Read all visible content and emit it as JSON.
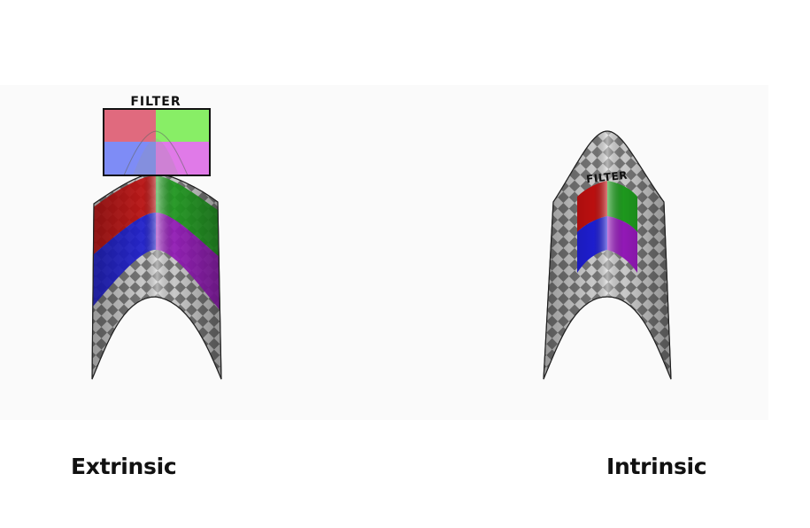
{
  "filter_label": "FILTER",
  "captions": {
    "extrinsic": "Extrinsic",
    "intrinsic": "Intrinsic"
  },
  "filter_colors": {
    "red": "#e06a7e",
    "green": "#88ee66",
    "blue": "#7e8cf6",
    "magenta": "#e07ae8"
  },
  "patch_colors": {
    "red": "#c41010",
    "green": "#1fa01f",
    "blue": "#1f1fd8",
    "purple": "#9a1ac0"
  }
}
